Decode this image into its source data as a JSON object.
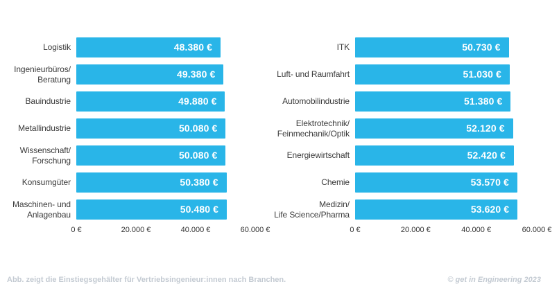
{
  "colors": {
    "background": "#ffffff",
    "bar": "#29b5e8",
    "category_label": "#3b3b3b",
    "axis_tick": "#333333",
    "value_label": "#ffffff",
    "footer_text": "#c3cad2"
  },
  "chart_data": [
    {
      "type": "bar",
      "orientation": "horizontal",
      "title": "",
      "categories": [
        "Logistik",
        "Ingenieurbüros/\nBeratung",
        "Bauindustrie",
        "Metallindustrie",
        "Wissenschaft/\nForschung",
        "Konsumgüter",
        "Maschinen- und\nAnlagenbau"
      ],
      "values": [
        48380,
        49380,
        49880,
        50080,
        50080,
        50380,
        50480
      ],
      "value_labels": [
        "48.380 €",
        "49.380 €",
        "49.880 €",
        "50.080 €",
        "50.080 €",
        "50.380 €",
        "50.480 €"
      ],
      "xlim": [
        0,
        60000
      ],
      "x_ticks": [
        "0 €",
        "20.000 €",
        "40.000 €",
        "60.000 €"
      ],
      "grid": false,
      "legend": false,
      "bar_color": "#29b5e8"
    },
    {
      "type": "bar",
      "orientation": "horizontal",
      "title": "",
      "categories": [
        "ITK",
        "Luft- und Raumfahrt",
        "Automobilindustrie",
        "Elektrotechnik/\nFeinmechanik/Optik",
        "Energiewirtschaft",
        "Chemie",
        "Medizin/\nLife Science/Pharma"
      ],
      "values": [
        50730,
        51030,
        51380,
        52120,
        52420,
        53570,
        53620
      ],
      "value_labels": [
        "50.730 €",
        "51.030 €",
        "51.380 €",
        "52.120 €",
        "52.420 €",
        "53.570 €",
        "53.620 €"
      ],
      "xlim": [
        0,
        60000
      ],
      "x_ticks": [
        "0 €",
        "20.000 €",
        "40.000 €",
        "60.000 €"
      ],
      "grid": false,
      "legend": false,
      "bar_color": "#29b5e8"
    }
  ],
  "footer": {
    "caption": "Abb. zeigt die Einstiegsgehälter für Vertriebsingenieur:innen nach Branchen.",
    "credit": "© get in Engineering 2023"
  }
}
